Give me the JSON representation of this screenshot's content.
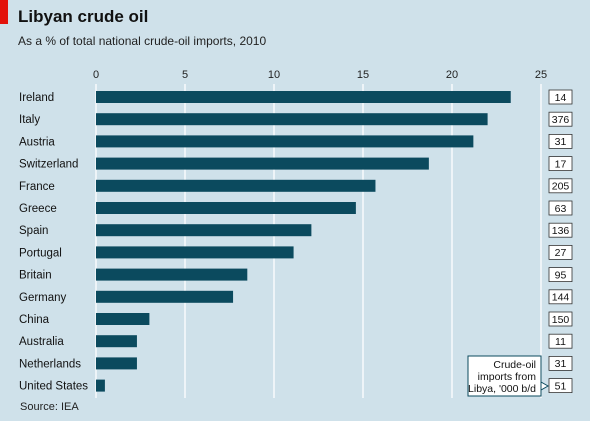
{
  "header": {
    "title": "Libyan crude oil",
    "subtitle": "As a % of total national crude-oil imports, 2010"
  },
  "footer": {
    "source": "Source: IEA"
  },
  "annotation": {
    "lines": [
      "Crude-oil",
      "imports from",
      "Libya, '000 b/d"
    ]
  },
  "colors": {
    "bar": "#0b4a5e",
    "background": "#cfe1ea",
    "grid": "#ffffff",
    "accent": "#e3120b"
  },
  "chart_data": {
    "type": "bar",
    "orientation": "horizontal",
    "title": "Libyan crude oil",
    "subtitle": "As a % of total national crude-oil imports, 2010",
    "xlim": [
      0,
      25
    ],
    "xticks": [
      0,
      5,
      10,
      15,
      20,
      25
    ],
    "grid": true,
    "categories": [
      "Ireland",
      "Italy",
      "Austria",
      "Switzerland",
      "France",
      "Greece",
      "Spain",
      "Portugal",
      "Britain",
      "Germany",
      "China",
      "Australia",
      "Netherlands",
      "United States"
    ],
    "series": [
      {
        "values": [
          23.3,
          22.0,
          21.2,
          18.7,
          15.7,
          14.6,
          12.1,
          11.1,
          8.5,
          7.7,
          3.0,
          2.3,
          2.3,
          0.5
        ]
      }
    ],
    "imports_kbd": [
      14,
      376,
      31,
      17,
      205,
      63,
      136,
      27,
      95,
      144,
      150,
      11,
      31,
      51
    ]
  }
}
